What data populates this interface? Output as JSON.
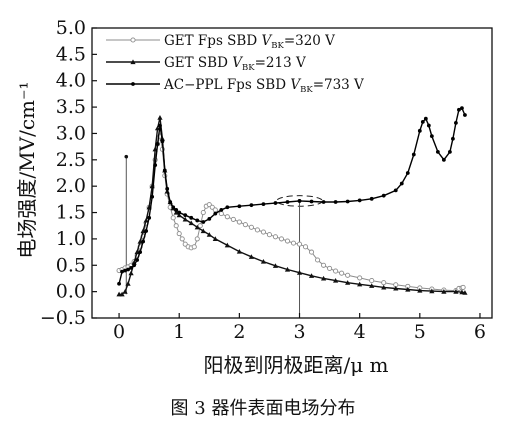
{
  "chart_data": {
    "type": "line",
    "ylabel": "电场强度/MV/cm⁻¹",
    "xlabel": "阳极到阴极距离/μ m",
    "caption": "图 3 器件表面电场分布",
    "xlim": [
      -0.45,
      6.2
    ],
    "ylim": [
      -0.5,
      5.0
    ],
    "xticks": [
      0,
      1,
      2,
      3,
      4,
      5,
      6
    ],
    "yticks": [
      -0.5,
      0.0,
      0.5,
      1.0,
      1.5,
      2.0,
      2.5,
      3.0,
      3.5,
      4.0,
      4.5,
      5.0
    ],
    "ytick_labels": [
      "−0.5",
      "0.0",
      "0.5",
      "1.0",
      "1.5",
      "2.0",
      "2.5",
      "3.0",
      "3.5",
      "4.0",
      "4.5",
      "5.0"
    ],
    "xtick_labels": [
      "0",
      "1",
      "2",
      "3",
      "4",
      "5",
      "6"
    ],
    "grid": false,
    "legend_position": "top-right",
    "annotations": [
      {
        "type": "dashed-ellipse",
        "x": 3.0,
        "y": 1.72,
        "rx": 0.38,
        "ry": 0.1
      },
      {
        "type": "drop-line",
        "x": 3.0,
        "from": -0.45,
        "to": 1.72
      },
      {
        "type": "drop-line",
        "x": 0.12,
        "from": -0.05,
        "to": 2.56
      }
    ],
    "series": [
      {
        "name": "GET Fps SBD V_BK=320 V",
        "label_main": "GET Fps SBD ",
        "label_var": "V",
        "label_sub": "BK",
        "label_tail": "=320 V",
        "color": "#8c8c8c",
        "marker": "open-circle",
        "x": [
          0.0,
          0.05,
          0.1,
          0.15,
          0.2,
          0.25,
          0.3,
          0.35,
          0.4,
          0.45,
          0.5,
          0.55,
          0.6,
          0.64,
          0.68,
          0.72,
          0.76,
          0.8,
          0.85,
          0.9,
          0.95,
          1.0,
          1.05,
          1.1,
          1.15,
          1.2,
          1.25,
          1.3,
          1.35,
          1.4,
          1.45,
          1.5,
          1.55,
          1.6,
          1.7,
          1.8,
          1.9,
          2.0,
          2.1,
          2.2,
          2.3,
          2.4,
          2.5,
          2.6,
          2.7,
          2.8,
          2.9,
          3.0,
          3.1,
          3.2,
          3.3,
          3.4,
          3.5,
          3.6,
          3.7,
          3.8,
          4.0,
          4.2,
          4.4,
          4.6,
          4.8,
          5.0,
          5.2,
          5.4,
          5.6,
          5.65,
          5.7,
          5.72
        ],
        "y": [
          0.4,
          0.42,
          0.45,
          0.47,
          0.5,
          0.57,
          0.68,
          0.85,
          1.05,
          1.3,
          1.6,
          2.0,
          2.5,
          2.8,
          2.95,
          2.7,
          2.2,
          1.85,
          1.6,
          1.4,
          1.25,
          1.1,
          1.0,
          0.9,
          0.85,
          0.83,
          0.85,
          1.0,
          1.25,
          1.5,
          1.62,
          1.65,
          1.6,
          1.55,
          1.48,
          1.42,
          1.37,
          1.32,
          1.27,
          1.22,
          1.17,
          1.13,
          1.08,
          1.04,
          1.0,
          0.96,
          0.92,
          0.9,
          0.85,
          0.75,
          0.6,
          0.5,
          0.44,
          0.39,
          0.35,
          0.31,
          0.26,
          0.21,
          0.17,
          0.13,
          0.1,
          0.07,
          0.05,
          0.03,
          0.02,
          0.06,
          0.07,
          0.08
        ]
      },
      {
        "name": "GET SBD V_BK=213 V",
        "label_main": "GET SBD ",
        "label_var": "V",
        "label_sub": "BK",
        "label_tail": "=213 V",
        "color": "#111111",
        "marker": "filled-triangle",
        "x": [
          0.0,
          0.05,
          0.1,
          0.15,
          0.2,
          0.25,
          0.3,
          0.35,
          0.4,
          0.45,
          0.5,
          0.55,
          0.6,
          0.64,
          0.68,
          0.72,
          0.76,
          0.8,
          0.85,
          0.9,
          0.95,
          1.0,
          1.1,
          1.2,
          1.3,
          1.4,
          1.5,
          1.6,
          1.8,
          2.0,
          2.2,
          2.4,
          2.6,
          2.8,
          3.0,
          3.2,
          3.4,
          3.6,
          3.8,
          4.0,
          4.2,
          4.4,
          4.6,
          4.8,
          5.0,
          5.2,
          5.4,
          5.6,
          5.7,
          5.75
        ],
        "y": [
          -0.05,
          -0.05,
          0.0,
          0.15,
          0.35,
          0.55,
          0.75,
          0.95,
          1.15,
          1.35,
          1.6,
          2.0,
          2.7,
          3.1,
          3.3,
          2.9,
          2.3,
          1.9,
          1.7,
          1.58,
          1.5,
          1.45,
          1.37,
          1.3,
          1.22,
          1.15,
          1.08,
          1.0,
          0.88,
          0.76,
          0.66,
          0.57,
          0.49,
          0.42,
          0.36,
          0.3,
          0.25,
          0.21,
          0.17,
          0.14,
          0.11,
          0.08,
          0.06,
          0.04,
          0.02,
          0.01,
          0.0,
          0.0,
          -0.01,
          -0.02
        ]
      },
      {
        "name": "AC−PPL Fps SBD V_BK=733 V",
        "label_main": "AC−PPL Fps SBD ",
        "label_var": "V",
        "label_sub": "BK",
        "label_tail": "=733 V",
        "color": "#000000",
        "marker": "filled-circle",
        "x": [
          0.0,
          0.05,
          0.1,
          0.15,
          0.2,
          0.25,
          0.3,
          0.35,
          0.4,
          0.45,
          0.5,
          0.55,
          0.6,
          0.64,
          0.68,
          0.72,
          0.76,
          0.8,
          0.85,
          0.9,
          0.95,
          1.0,
          1.1,
          1.2,
          1.3,
          1.4,
          1.5,
          1.6,
          1.7,
          1.8,
          2.0,
          2.2,
          2.4,
          2.6,
          2.8,
          3.0,
          3.2,
          3.4,
          3.6,
          3.8,
          4.0,
          4.2,
          4.4,
          4.6,
          4.7,
          4.8,
          4.9,
          5.0,
          5.05,
          5.1,
          5.15,
          5.2,
          5.3,
          5.4,
          5.5,
          5.55,
          5.6,
          5.65,
          5.7,
          5.75
        ],
        "y": [
          0.15,
          0.38,
          0.4,
          0.42,
          0.45,
          0.5,
          0.6,
          0.75,
          0.95,
          1.15,
          1.4,
          1.8,
          2.4,
          2.8,
          3.15,
          2.85,
          2.3,
          1.95,
          1.7,
          1.6,
          1.55,
          1.5,
          1.45,
          1.4,
          1.35,
          1.32,
          1.38,
          1.48,
          1.55,
          1.6,
          1.62,
          1.64,
          1.66,
          1.68,
          1.7,
          1.72,
          1.71,
          1.7,
          1.7,
          1.71,
          1.73,
          1.76,
          1.82,
          1.92,
          2.05,
          2.25,
          2.6,
          3.05,
          3.22,
          3.28,
          3.15,
          2.95,
          2.65,
          2.5,
          2.65,
          2.9,
          3.2,
          3.45,
          3.48,
          3.35
        ]
      }
    ]
  }
}
